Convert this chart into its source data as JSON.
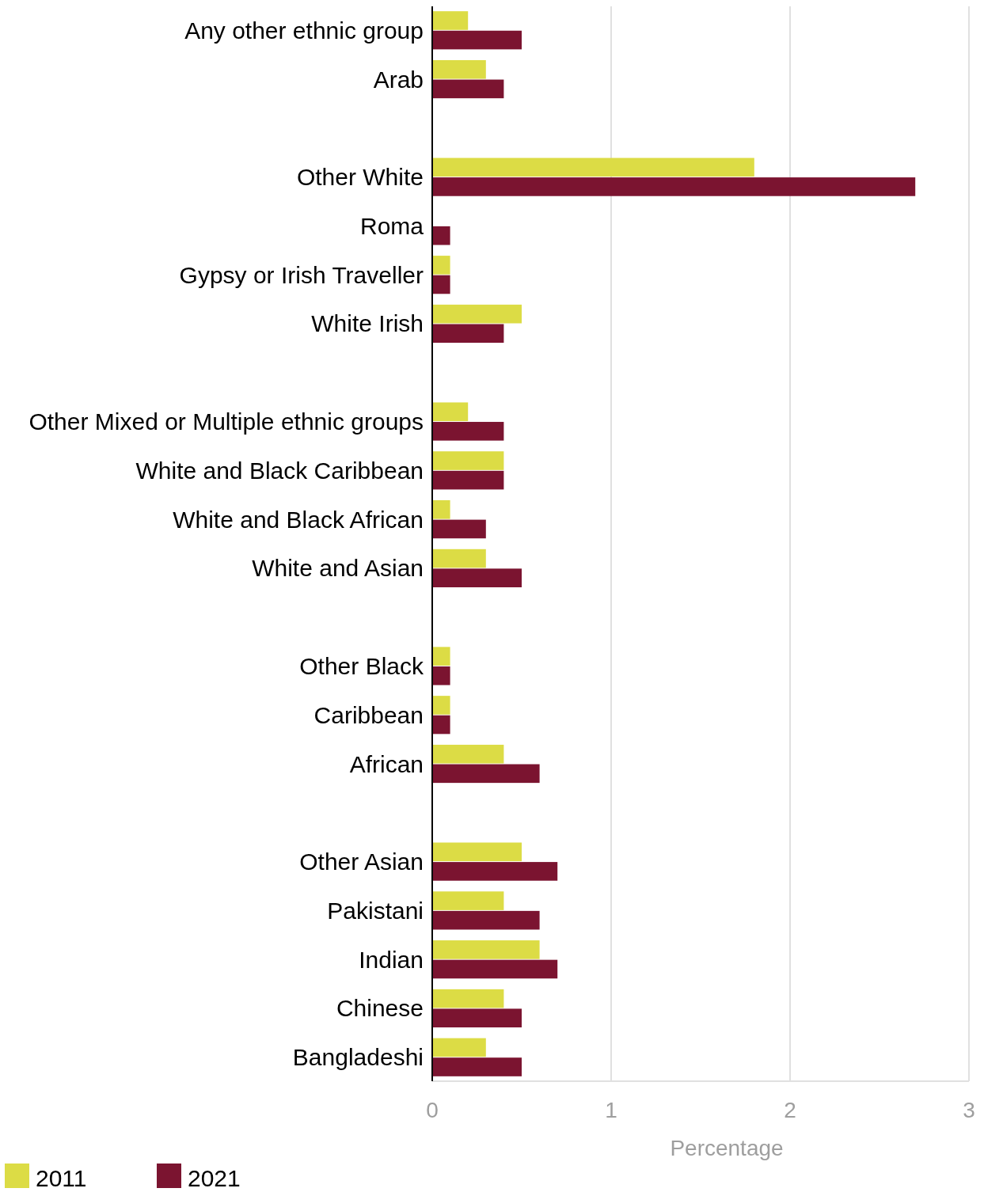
{
  "chart_data": {
    "type": "bar",
    "orientation": "horizontal",
    "xlabel": "Percentage",
    "categories": [
      "Any other ethnic group",
      "Arab",
      null,
      "Other White",
      "Roma",
      "Gypsy or Irish Traveller",
      "White Irish",
      null,
      "Other Mixed or Multiple ethnic groups",
      "White and Black Caribbean",
      "White and Black African",
      "White and Asian",
      null,
      "Other Black",
      "Caribbean",
      "African",
      null,
      "Other Asian",
      "Pakistani",
      "Indian",
      "Chinese",
      "Bangladeshi"
    ],
    "series": [
      {
        "name": "2011",
        "color": "#dcdc45",
        "values": [
          0.2,
          0.3,
          null,
          1.8,
          null,
          0.1,
          0.5,
          null,
          0.2,
          0.4,
          0.1,
          0.3,
          null,
          0.1,
          0.1,
          0.4,
          null,
          0.5,
          0.4,
          0.6,
          0.4,
          0.3
        ]
      },
      {
        "name": "2021",
        "color": "#7b1430",
        "values": [
          0.5,
          0.4,
          null,
          2.7,
          0.1,
          0.1,
          0.4,
          null,
          0.4,
          0.4,
          0.3,
          0.5,
          null,
          0.1,
          0.1,
          0.6,
          null,
          0.7,
          0.6,
          0.7,
          0.5,
          0.5
        ]
      }
    ],
    "xlim": [
      0,
      3
    ],
    "xticks": [
      0,
      1,
      2,
      3
    ],
    "grid": "x",
    "legend": "bottom left"
  }
}
